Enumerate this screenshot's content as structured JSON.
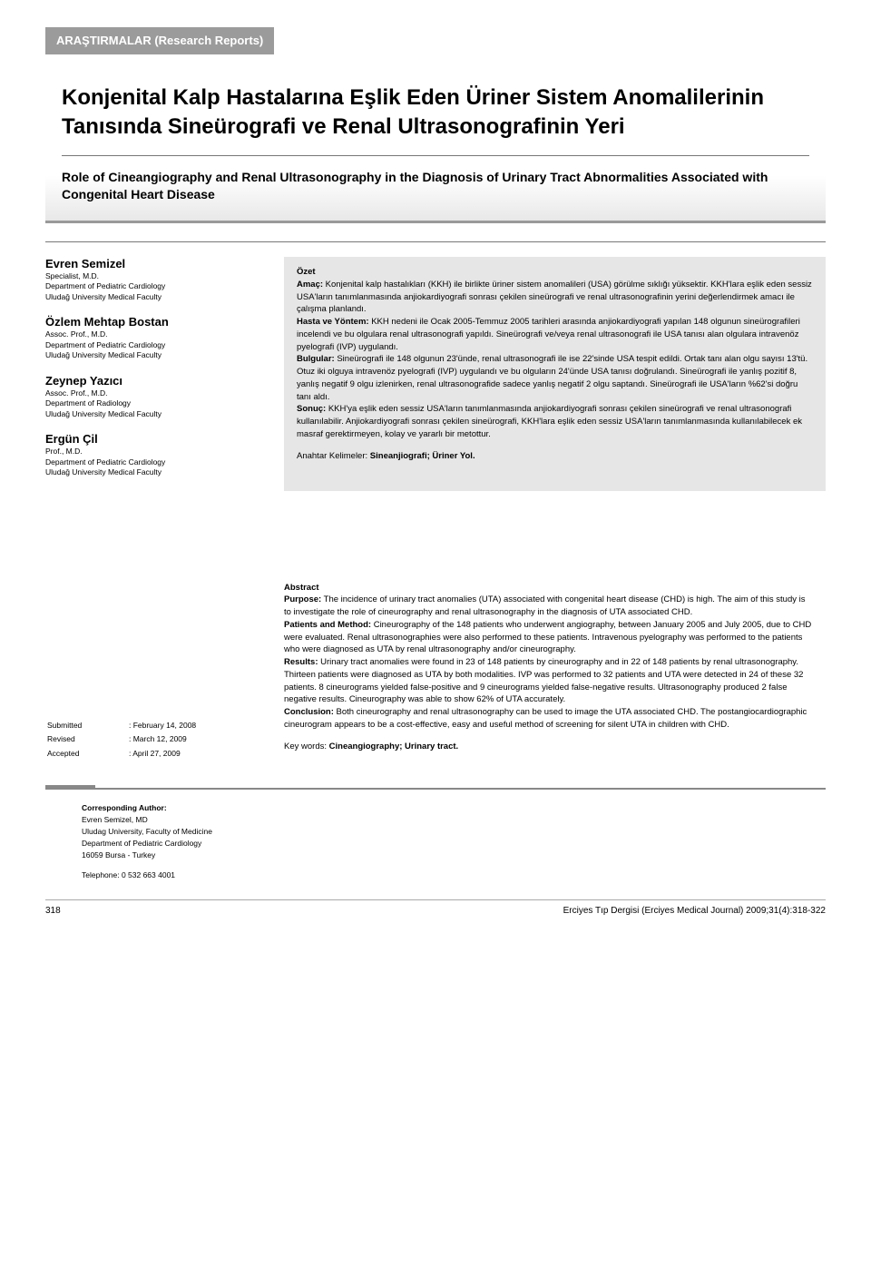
{
  "header_bar": "ARAŞTIRMALAR (Research Reports)",
  "title_tr": "Konjenital Kalp Hastalarına Eşlik Eden Üriner Sistem Anomalilerinin Tanısında Sineürografi ve Renal Ultrasonografinin Yeri",
  "title_en": "Role of Cineangiography and Renal Ultrasonography in the Diagnosis of Urinary Tract Abnormalities Associated with Congenital Heart Disease",
  "authors": [
    {
      "name": "Evren Semizel",
      "deg": "Specialist, M.D.",
      "dept": "Department of Pediatric Cardiology",
      "fac": "Uludağ University Medical Faculty"
    },
    {
      "name": "Özlem Mehtap Bostan",
      "deg": "Assoc. Prof., M.D.",
      "dept": "Department of Pediatric Cardiology",
      "fac": "Uludağ University Medical Faculty"
    },
    {
      "name": "Zeynep Yazıcı",
      "deg": "Assoc. Prof., M.D.",
      "dept": "Department of Radiology",
      "fac": "Uludağ University Medical Faculty"
    },
    {
      "name": "Ergün Çil",
      "deg": "Prof., M.D.",
      "dept": "Department of Pediatric Cardiology",
      "fac": "Uludağ University Medical Faculty"
    }
  ],
  "ozet": {
    "heading": "Özet",
    "amac_label": "Amaç:",
    "amac_text": " Konjenital kalp hastalıkları (KKH) ile birlikte üriner sistem anomalileri (USA) görülme sıklığı yüksektir. KKH'lara eşlik eden sessiz USA'ların tanımlanmasında anjiokardiyografi sonrası çekilen sineürografi ve renal ultrasonografinin yerini değerlendirmek amacı ile çalışma planlandı.",
    "hasta_label": "Hasta ve Yöntem:",
    "hasta_text": " KKH nedeni ile Ocak 2005-Temmuz 2005 tarihleri arasında anjiokardiyografi yapılan 148 olgunun sineürografileri incelendi ve bu olgulara renal ultrasonografi yapıldı. Sineürografi ve/veya renal ultrasonografi ile USA tanısı alan olgulara intravenöz pyelografi (IVP) uygulandı.",
    "bulgular_label": "Bulgular:",
    "bulgular_text": " Sineürografi ile 148 olgunun 23'ünde, renal ultrasonografi ile ise 22'sinde USA tespit edildi. Ortak tanı alan olgu sayısı 13'tü. Otuz iki olguya intravenöz pyelografi (IVP) uygulandı ve bu olguların 24'ünde USA tanısı doğrulandı. Sineürografi ile yanlış pozitif 8, yanlış negatif 9 olgu izlenirken, renal ultrasonografide sadece yanlış negatif 2 olgu saptandı. Sineürografi ile USA'ların %62'si doğru tanı aldı.",
    "sonuc_label": "Sonuç:",
    "sonuc_text": " KKH'ya eşlik eden sessiz USA'ların tanımlanmasında anjiokardiyografi sonrası çekilen sineürografi ve renal ultrasonografi kullanılabilir. Anjiokardiyografi sonrası çekilen sineürografi, KKH'lara eşlik eden sessiz USA'ların tanımlanmasında kullanılabilecek ek masraf gerektirmeyen, kolay ve yararlı bir metottur.",
    "keywords_label": "Anahtar Kelimeler: ",
    "keywords": "Sineanjiografi; Üriner Yol."
  },
  "dates": {
    "submitted_label": "Submitted",
    "submitted": ": February 14, 2008",
    "revised_label": "Revised",
    "revised": ": March 12, 2009",
    "accepted_label": "Accepted",
    "accepted": ": April 27, 2009"
  },
  "abstract": {
    "heading": "Abstract",
    "purpose_label": "Purpose:",
    "purpose_text": " The incidence of urinary tract anomalies (UTA) associated with congenital heart disease (CHD) is high. The aim of this study is to investigate the role of cineurography and renal ultrasonography in the diagnosis of UTA associated CHD.",
    "patients_label": "Patients and Method:",
    "patients_text": " Cineurography of the 148 patients who underwent angiography, between January 2005 and July 2005, due to CHD were evaluated. Renal ultrasonographies were also performed to these patients. Intravenous pyelography was performed to the patients who were diagnosed as UTA by renal ultrasonography and/or cineurography.",
    "results_label": "Results:",
    "results_text": " Urinary tract anomalies were found in 23 of 148 patients by cineurography and in 22 of 148 patients by renal ultrasonography. Thirteen patients were diagnosed as UTA by both modalities. IVP was performed to 32 patients and UTA were detected in 24 of these 32 patients. 8 cineurograms yielded false-positive and 9 cineurograms yielded false-negative results. Ultrasonography produced 2 false negative results. Cineurography was able to show 62% of UTA accurately.",
    "conclusion_label": "Conclusion:",
    "conclusion_text": " Both cineurography and renal ultrasonography can be used to image the UTA associated CHD. The postangiocardiographic cineurogram appears to be a cost-effective, easy and useful method of screening for silent UTA in children with CHD.",
    "keywords_label": "Key words: ",
    "keywords": "Cineangiography; Urinary tract."
  },
  "corresponding": {
    "heading": "Corresponding Author:",
    "name": "Evren Semizel, MD",
    "inst": "Uludag University, Faculty of Medicine",
    "dept": "Department of Pediatric Cardiology",
    "addr": "16059 Bursa - Turkey",
    "tel": "Telephone: 0 532 663 4001"
  },
  "footer": {
    "page": "318",
    "journal": "Erciyes Tıp Dergisi (Erciyes Medical Journal) 2009;31(4):318-322"
  }
}
